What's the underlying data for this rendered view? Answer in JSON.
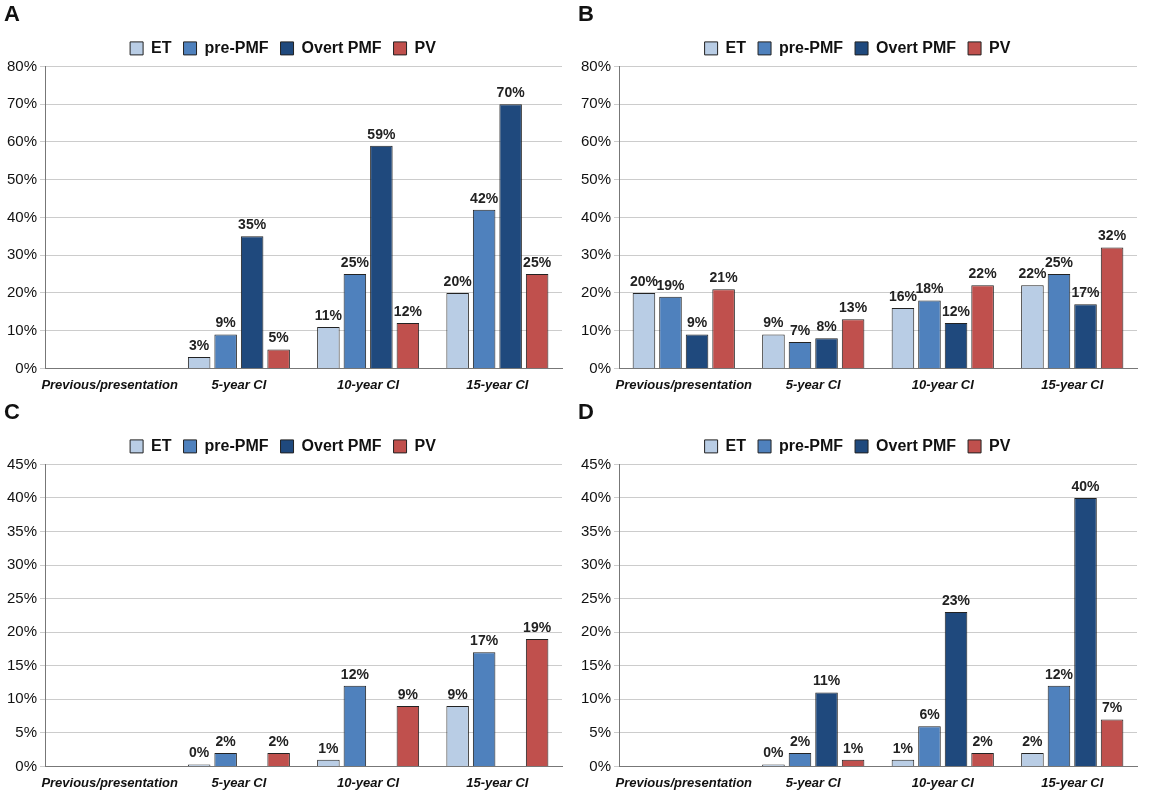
{
  "chart_data": [
    {
      "type": "bar",
      "title": "A",
      "categories": [
        "Previous/presentation",
        "5-year CI",
        "10-year CI",
        "15-year CI"
      ],
      "ylim": [
        0,
        80
      ],
      "yticks": [
        {
          "value": 0,
          "label": "0%"
        },
        {
          "value": 10,
          "label": "10%"
        },
        {
          "value": 20,
          "label": "20%"
        },
        {
          "value": 30,
          "label": "30%"
        },
        {
          "value": 40,
          "label": "40%"
        },
        {
          "value": 50,
          "label": "50%"
        },
        {
          "value": 60,
          "label": "60%"
        },
        {
          "value": 70,
          "label": "70%"
        },
        {
          "value": 80,
          "label": "80%"
        }
      ],
      "grid": "y",
      "legend": "top",
      "series": [
        {
          "name": "ET",
          "color": "#b9cde5",
          "values": [
            null,
            3,
            11,
            20
          ],
          "value_labels": [
            null,
            "3%",
            "11%",
            "20%"
          ]
        },
        {
          "name": "pre-PMF",
          "color": "#4f81bd",
          "values": [
            null,
            9,
            25,
            42
          ],
          "value_labels": [
            null,
            "9%",
            "25%",
            "42%"
          ]
        },
        {
          "name": "Overt PMF",
          "color": "#1f497d",
          "values": [
            null,
            35,
            59,
            70
          ],
          "value_labels": [
            null,
            "35%",
            "59%",
            "70%"
          ]
        },
        {
          "name": "PV",
          "color": "#c0504d",
          "values": [
            null,
            5,
            12,
            25
          ],
          "value_labels": [
            null,
            "5%",
            "12%",
            "25%"
          ]
        }
      ]
    },
    {
      "type": "bar",
      "title": "B",
      "categories": [
        "Previous/presentation",
        "5-year CI",
        "10-year CI",
        "15-year CI"
      ],
      "ylim": [
        0,
        80
      ],
      "yticks": [
        {
          "value": 0,
          "label": "0%"
        },
        {
          "value": 10,
          "label": "10%"
        },
        {
          "value": 20,
          "label": "20%"
        },
        {
          "value": 30,
          "label": "30%"
        },
        {
          "value": 40,
          "label": "40%"
        },
        {
          "value": 50,
          "label": "50%"
        },
        {
          "value": 60,
          "label": "60%"
        },
        {
          "value": 70,
          "label": "70%"
        },
        {
          "value": 80,
          "label": "80%"
        }
      ],
      "grid": "y",
      "legend": "top",
      "series": [
        {
          "name": "ET",
          "color": "#b9cde5",
          "values": [
            20,
            9,
            16,
            22
          ],
          "value_labels": [
            "20%",
            "9%",
            "16%",
            "22%"
          ]
        },
        {
          "name": "pre-PMF",
          "color": "#4f81bd",
          "values": [
            19,
            7,
            18,
            25
          ],
          "value_labels": [
            "19%",
            "7%",
            "18%",
            "25%"
          ]
        },
        {
          "name": "Overt PMF",
          "color": "#1f497d",
          "values": [
            9,
            8,
            12,
            17
          ],
          "value_labels": [
            "9%",
            "8%",
            "12%",
            "17%"
          ]
        },
        {
          "name": "PV",
          "color": "#c0504d",
          "values": [
            21,
            13,
            22,
            32
          ],
          "value_labels": [
            "21%",
            "13%",
            "22%",
            "32%"
          ]
        }
      ]
    },
    {
      "type": "bar",
      "title": "C",
      "categories": [
        "Previous/presentation",
        "5-year CI",
        "10-year CI",
        "15-year CI"
      ],
      "ylim": [
        0,
        45
      ],
      "yticks": [
        {
          "value": 0,
          "label": "0%"
        },
        {
          "value": 5,
          "label": "5%"
        },
        {
          "value": 10,
          "label": "10%"
        },
        {
          "value": 15,
          "label": "15%"
        },
        {
          "value": 20,
          "label": "20%"
        },
        {
          "value": 25,
          "label": "25%"
        },
        {
          "value": 30,
          "label": "30%"
        },
        {
          "value": 35,
          "label": "35%"
        },
        {
          "value": 40,
          "label": "40%"
        },
        {
          "value": 45,
          "label": "45%"
        }
      ],
      "grid": "y",
      "legend": "top",
      "series": [
        {
          "name": "ET",
          "color": "#b9cde5",
          "values": [
            null,
            0.3,
            1,
            9
          ],
          "value_labels": [
            null,
            "0%",
            "1%",
            "9%"
          ]
        },
        {
          "name": "pre-PMF",
          "color": "#4f81bd",
          "values": [
            null,
            2,
            12,
            17
          ],
          "value_labels": [
            null,
            "2%",
            "12%",
            "17%"
          ]
        },
        {
          "name": "Overt PMF",
          "color": "#1f497d",
          "values": [
            null,
            null,
            null,
            null
          ],
          "value_labels": [
            null,
            null,
            null,
            null
          ]
        },
        {
          "name": "PV",
          "color": "#c0504d",
          "values": [
            null,
            2,
            9,
            19
          ],
          "value_labels": [
            null,
            "2%",
            "9%",
            "19%"
          ]
        }
      ]
    },
    {
      "type": "bar",
      "title": "D",
      "categories": [
        "Previous/presentation",
        "5-year CI",
        "10-year CI",
        "15-year CI"
      ],
      "ylim": [
        0,
        45
      ],
      "yticks": [
        {
          "value": 0,
          "label": "0%"
        },
        {
          "value": 5,
          "label": "5%"
        },
        {
          "value": 10,
          "label": "10%"
        },
        {
          "value": 15,
          "label": "15%"
        },
        {
          "value": 20,
          "label": "20%"
        },
        {
          "value": 25,
          "label": "25%"
        },
        {
          "value": 30,
          "label": "30%"
        },
        {
          "value": 35,
          "label": "35%"
        },
        {
          "value": 40,
          "label": "40%"
        },
        {
          "value": 45,
          "label": "45%"
        }
      ],
      "grid": "y",
      "legend": "top",
      "series": [
        {
          "name": "ET",
          "color": "#b9cde5",
          "values": [
            null,
            0.3,
            1,
            2
          ],
          "value_labels": [
            null,
            "0%",
            "1%",
            "2%"
          ]
        },
        {
          "name": "pre-PMF",
          "color": "#4f81bd",
          "values": [
            null,
            2,
            6,
            12
          ],
          "value_labels": [
            null,
            "2%",
            "6%",
            "12%"
          ]
        },
        {
          "name": "Overt PMF",
          "color": "#1f497d",
          "values": [
            null,
            11,
            23,
            40
          ],
          "value_labels": [
            null,
            "11%",
            "23%",
            "40%"
          ]
        },
        {
          "name": "PV",
          "color": "#c0504d",
          "values": [
            null,
            1,
            2,
            7
          ],
          "value_labels": [
            null,
            "1%",
            "2%",
            "7%"
          ]
        }
      ]
    }
  ]
}
